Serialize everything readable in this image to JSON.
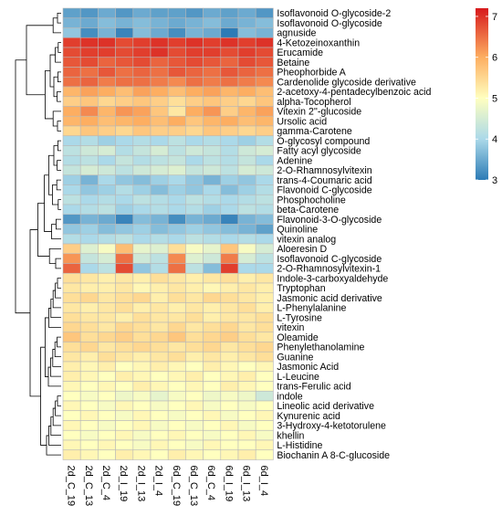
{
  "chart_data": {
    "type": "heatmap",
    "title": "",
    "columns": [
      "2d_C_19",
      "2d_C_13",
      "2d_C_4",
      "2d_I_19",
      "2d_I_13",
      "2d_I_4",
      "6d_C_19",
      "6d_C_13",
      "6d_C_4",
      "6d_I_19",
      "6d_I_13",
      "6d_I_4"
    ],
    "rows": [
      "Isoflavonoid O-glycoside-2",
      "Isoflavonoid O-glycoside",
      "agnuside",
      "4-Ketozeinoxanthin",
      "Erucamide",
      "Betaine",
      "Pheophorbide A",
      "Cardenolide glycoside derivative",
      "2-acetoxy-4-pentadecylbenzoic acid",
      "alpha-Tocopherol",
      "Vitexin 2''-glucoside",
      "Ursolic acid",
      "gamma-Carotene",
      "O-glycosyl compound",
      "Fatty acyl glycoside",
      "Adenine",
      "2-O-Rhamnosylvitexin",
      "trans-4-Coumaric acid",
      "Flavonoid C-glycoside",
      "Phosphocholine",
      "beta-Carotene",
      "Flavonoid-3-O-glycoside",
      "Quinoline",
      "vitexin analog",
      "Aloeresin D",
      "Isoflavonoid C-glycoside",
      "2-O-Rhamnosylvitexin-1",
      "Indole-3-carboxyaldehyde",
      "Tryptophan",
      "Jasmonic acid derivative",
      "L-Phenylalanine",
      "L-Tyrosine",
      "vitexin",
      "Oleamide",
      "Phenylethanolamine",
      "Guanine",
      "Jasmonic Acid",
      "L-Leucine",
      "trans-Ferulic acid",
      "indole",
      "Lineolic acid derivative",
      "Kynurenic acid",
      "3-Hydroxy-4-ketotorulene",
      "khellin",
      "L-Histidine",
      "Biochanin A 8-C-glucoside"
    ],
    "values": [
      [
        3.4,
        3.3,
        3.5,
        3.3,
        3.5,
        3.4,
        3.4,
        3.3,
        3.5,
        3.4,
        3.5,
        3.3
      ],
      [
        3.6,
        3.5,
        3.7,
        3.6,
        3.7,
        3.6,
        3.5,
        3.6,
        3.7,
        3.5,
        3.6,
        3.7
      ],
      [
        3.8,
        3.2,
        3.6,
        3.1,
        3.7,
        3.5,
        3.2,
        3.6,
        3.5,
        3.0,
        3.7,
        3.6
      ],
      [
        6.9,
        7.0,
        7.0,
        6.8,
        6.9,
        7.0,
        6.9,
        7.0,
        6.9,
        7.0,
        6.9,
        7.0
      ],
      [
        6.8,
        6.9,
        6.9,
        6.8,
        6.9,
        7.0,
        6.8,
        6.9,
        6.9,
        6.8,
        6.9,
        6.8
      ],
      [
        6.7,
        6.8,
        6.6,
        6.7,
        6.8,
        6.6,
        6.7,
        6.8,
        6.7,
        6.6,
        6.8,
        6.7
      ],
      [
        6.6,
        6.5,
        6.7,
        6.5,
        6.6,
        6.5,
        6.7,
        6.6,
        6.5,
        6.7,
        6.6,
        6.5
      ],
      [
        6.5,
        6.6,
        6.4,
        6.5,
        6.5,
        6.4,
        6.3,
        6.5,
        6.4,
        6.5,
        6.4,
        6.3
      ],
      [
        5.9,
        6.1,
        6.0,
        5.8,
        6.1,
        6.0,
        5.8,
        6.0,
        6.1,
        5.9,
        6.0,
        5.8
      ],
      [
        5.6,
        5.7,
        5.5,
        5.6,
        5.7,
        5.6,
        5.4,
        5.6,
        5.7,
        5.6,
        5.5,
        5.7
      ],
      [
        6.0,
        6.3,
        5.9,
        6.2,
        6.1,
        5.7,
        5.3,
        6.0,
        6.2,
        5.6,
        5.9,
        6.1
      ],
      [
        5.9,
        6.0,
        5.8,
        5.9,
        6.0,
        5.8,
        6.0,
        5.7,
        5.9,
        6.0,
        5.8,
        5.9
      ],
      [
        5.5,
        5.7,
        5.6,
        5.5,
        5.7,
        5.6,
        5.6,
        5.5,
        5.7,
        5.6,
        5.5,
        5.6
      ],
      [
        4.0,
        4.1,
        3.9,
        4.0,
        4.1,
        4.0,
        4.2,
        4.0,
        4.1,
        4.0,
        3.9,
        4.1
      ],
      [
        4.2,
        4.4,
        4.5,
        4.1,
        4.3,
        4.5,
        4.2,
        4.4,
        4.3,
        4.1,
        4.4,
        4.5
      ],
      [
        4.1,
        4.2,
        4.0,
        4.3,
        4.1,
        4.2,
        4.3,
        4.0,
        4.2,
        4.1,
        4.3,
        4.0
      ],
      [
        4.3,
        4.5,
        4.4,
        4.2,
        4.4,
        4.5,
        4.6,
        4.3,
        4.4,
        4.2,
        4.5,
        4.4
      ],
      [
        3.9,
        3.6,
        4.0,
        3.8,
        3.7,
        3.9,
        4.0,
        3.8,
        3.6,
        3.9,
        3.8,
        4.0
      ],
      [
        4.0,
        3.8,
        3.9,
        4.1,
        3.9,
        3.7,
        3.9,
        3.8,
        4.0,
        3.7,
        3.9,
        4.1
      ],
      [
        4.2,
        4.0,
        4.1,
        4.0,
        4.2,
        4.1,
        4.0,
        4.2,
        4.1,
        4.0,
        4.1,
        4.2
      ],
      [
        4.0,
        4.1,
        4.2,
        3.9,
        4.0,
        4.1,
        4.0,
        4.1,
        3.9,
        4.0,
        4.2,
        4.1
      ],
      [
        3.3,
        3.6,
        3.5,
        3.1,
        3.7,
        3.6,
        3.2,
        3.6,
        3.5,
        3.1,
        3.6,
        3.7
      ],
      [
        3.8,
        3.9,
        3.7,
        3.8,
        3.9,
        3.7,
        3.8,
        3.9,
        3.8,
        3.7,
        3.6,
        3.4
      ],
      [
        4.1,
        4.0,
        4.1,
        4.2,
        4.0,
        4.1,
        4.0,
        4.2,
        4.1,
        4.0,
        4.1,
        4.0
      ],
      [
        5.6,
        4.6,
        4.9,
        5.8,
        4.7,
        4.6,
        5.4,
        4.9,
        4.7,
        5.7,
        4.9,
        4.5
      ],
      [
        6.2,
        4.3,
        4.5,
        6.5,
        4.4,
        4.2,
        6.3,
        4.6,
        4.4,
        6.4,
        4.5,
        4.2
      ],
      [
        6.6,
        4.0,
        4.2,
        6.8,
        3.8,
        4.1,
        6.5,
        4.2,
        3.7,
        6.9,
        4.0,
        4.0
      ],
      [
        5.4,
        5.3,
        5.2,
        5.3,
        5.2,
        5.4,
        5.3,
        5.2,
        5.3,
        5.4,
        5.2,
        5.3
      ],
      [
        5.3,
        5.2,
        5.2,
        5.3,
        5.1,
        5.2,
        5.3,
        5.2,
        5.1,
        5.2,
        5.3,
        5.2
      ],
      [
        5.4,
        5.5,
        5.3,
        5.4,
        5.5,
        5.2,
        5.4,
        5.3,
        5.5,
        5.4,
        5.3,
        5.2
      ],
      [
        5.3,
        5.2,
        5.3,
        5.4,
        5.2,
        5.3,
        5.2,
        5.3,
        5.2,
        5.3,
        5.4,
        5.2
      ],
      [
        5.4,
        5.3,
        5.3,
        5.2,
        5.4,
        5.3,
        5.3,
        5.4,
        5.2,
        5.3,
        5.3,
        5.4
      ],
      [
        5.5,
        5.4,
        5.3,
        5.5,
        5.4,
        5.3,
        5.5,
        5.3,
        5.4,
        5.5,
        5.3,
        5.4
      ],
      [
        5.7,
        5.4,
        5.5,
        5.6,
        5.4,
        5.5,
        5.7,
        5.4,
        5.5,
        5.6,
        5.4,
        5.3
      ],
      [
        5.4,
        5.5,
        5.3,
        5.4,
        5.5,
        5.4,
        5.3,
        5.4,
        5.5,
        5.3,
        5.4,
        5.5
      ],
      [
        5.3,
        5.2,
        5.4,
        5.3,
        5.2,
        5.3,
        5.4,
        5.2,
        5.3,
        5.2,
        5.3,
        5.4
      ],
      [
        5.2,
        5.1,
        5.2,
        5.0,
        5.1,
        5.2,
        5.1,
        5.0,
        5.2,
        5.1,
        5.0,
        5.1
      ],
      [
        5.2,
        5.1,
        5.0,
        5.2,
        5.1,
        5.0,
        5.1,
        5.2,
        5.0,
        5.1,
        5.2,
        5.0
      ],
      [
        5.1,
        5.0,
        5.1,
        5.0,
        5.2,
        5.1,
        5.0,
        5.1,
        5.0,
        5.2,
        5.1,
        5.0
      ],
      [
        5.0,
        4.9,
        5.0,
        4.8,
        4.9,
        4.7,
        4.9,
        5.0,
        4.8,
        4.9,
        4.8,
        4.4
      ],
      [
        5.1,
        5.0,
        4.9,
        5.1,
        5.0,
        4.9,
        5.0,
        5.1,
        4.9,
        5.0,
        4.9,
        5.0
      ],
      [
        5.0,
        5.1,
        5.0,
        4.9,
        5.1,
        5.0,
        4.9,
        5.0,
        5.1,
        4.9,
        5.0,
        5.1
      ],
      [
        5.1,
        5.0,
        4.9,
        5.0,
        5.1,
        4.9,
        5.0,
        4.9,
        5.0,
        5.1,
        4.9,
        5.0
      ],
      [
        5.0,
        4.9,
        5.0,
        5.1,
        4.9,
        5.0,
        5.1,
        5.0,
        4.9,
        5.0,
        5.1,
        4.9
      ],
      [
        5.1,
        5.0,
        5.1,
        5.0,
        4.9,
        5.1,
        5.0,
        4.9,
        5.1,
        5.0,
        5.0,
        5.1
      ],
      [
        5.2,
        5.1,
        5.0,
        5.2,
        5.1,
        5.0,
        5.2,
        5.1,
        5.0,
        5.1,
        5.2,
        5.0
      ]
    ],
    "color_scale": {
      "min": 3,
      "max": 7.2,
      "ticks": [
        "3",
        "4",
        "5",
        "6",
        "7"
      ],
      "colors": [
        "#2166ac",
        "#4393c3",
        "#92c5de",
        "#d1e5f0",
        "#f7f7f7",
        "#fddbc7",
        "#f4a582",
        "#d6604d",
        "#b2182b"
      ],
      "palette": [
        "#2c7bb6",
        "#abd9e9",
        "#ffffbf",
        "#fdae61",
        "#d7191c"
      ]
    },
    "legend_placement": "top-right",
    "dendrogram": "rows",
    "grid": true
  }
}
